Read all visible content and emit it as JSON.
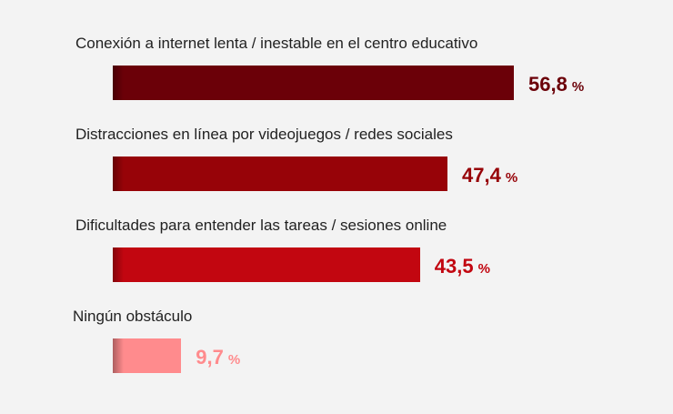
{
  "chart_data": {
    "type": "bar",
    "orientation": "horizontal",
    "categories": [
      "Conexión a internet lenta / inestable en el centro educativo",
      "Distracciones en línea por videojuegos / redes sociales",
      "Dificultades para entender las tareas / sesiones online",
      "Ningún obstáculo"
    ],
    "values": [
      56.8,
      47.4,
      43.5,
      9.7
    ],
    "value_labels": [
      "56,8",
      "47,4",
      "43,5",
      "9,7"
    ],
    "unit": "%",
    "colors": [
      "#6b0008",
      "#970308",
      "#c20610",
      "#ff8b8d"
    ],
    "xlim": [
      0,
      100
    ],
    "grid": false,
    "legend": "none"
  }
}
